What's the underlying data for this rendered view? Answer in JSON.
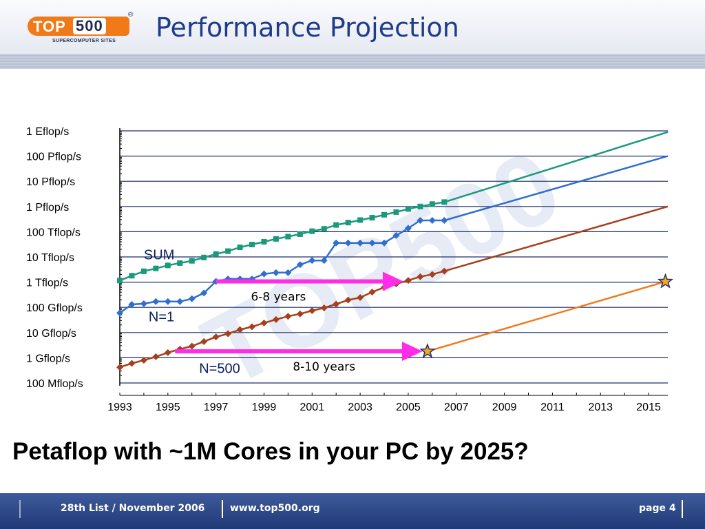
{
  "header": {
    "logo_text_top": "TOP",
    "logo_text_500": "500",
    "logo_registered": "®",
    "logo_subtitle": "SUPERCOMPUTER SITES",
    "title": "Performance Projection"
  },
  "question": "Petaflop with ~1M Cores in your PC by 2025?",
  "footer": {
    "list": "28th List / November 2006",
    "url": "www.top500.org",
    "page": "page 4"
  },
  "colors": {
    "sum": "#1a9a7d",
    "n1": "#2f6fcf",
    "n500": "#a5401d",
    "projection_orange": "#f27a1c",
    "arrow_magenta": "#ff2ee6",
    "title_blue": "#1f3b8c",
    "footer_blue": "#2d4785"
  },
  "chart_data": {
    "type": "line",
    "y_scale": "log",
    "y_unit": "Gflop/s",
    "ylim": [
      0.1,
      1000000000
    ],
    "xlim": [
      1993,
      2015.8
    ],
    "y_ticks": [
      {
        "value": 0.1,
        "label": "100 Mflop/s"
      },
      {
        "value": 1,
        "label": "1 Gflop/s"
      },
      {
        "value": 10,
        "label": "10 Gflop/s"
      },
      {
        "value": 100,
        "label": "100 Gflop/s"
      },
      {
        "value": 1000,
        "label": "1 Tflop/s"
      },
      {
        "value": 10000,
        "label": "10 Tflop/s"
      },
      {
        "value": 100000,
        "label": "100 Tflop/s"
      },
      {
        "value": 1000000,
        "label": "1 Pflop/s"
      },
      {
        "value": 10000000,
        "label": "10 Pflop/s"
      },
      {
        "value": 100000000,
        "label": "100 Pflop/s"
      },
      {
        "value": 1000000000,
        "label": "1 Eflop/s"
      }
    ],
    "x_ticks": [
      1993,
      1995,
      1997,
      1999,
      2001,
      2003,
      2005,
      2007,
      2009,
      2011,
      2013,
      2015
    ],
    "grid": true,
    "series": [
      {
        "name": "SUM",
        "x": [
          1993.0,
          1993.5,
          1994.0,
          1994.5,
          1995.0,
          1995.5,
          1996.0,
          1996.5,
          1997.0,
          1997.5,
          1998.0,
          1998.5,
          1999.0,
          1999.5,
          2000.0,
          2000.5,
          2001.0,
          2001.5,
          2002.0,
          2002.5,
          2003.0,
          2003.5,
          2004.0,
          2004.5,
          2005.0,
          2005.5,
          2006.0,
          2006.5
        ],
        "values": [
          1160,
          1800,
          2700,
          3500,
          4600,
          5700,
          7000,
          9500,
          13000,
          17000,
          24000,
          31000,
          40000,
          52000,
          64000,
          80000,
          105000,
          130000,
          185000,
          230000,
          290000,
          360000,
          470000,
          600000,
          800000,
          1000000,
          1250000,
          1500000
        ]
      },
      {
        "name": "N=1",
        "x": [
          1993.0,
          1993.5,
          1994.0,
          1994.5,
          1995.0,
          1995.5,
          1996.0,
          1996.5,
          1997.0,
          1997.5,
          1998.0,
          1998.5,
          1999.0,
          1999.5,
          2000.0,
          2000.5,
          2001.0,
          2001.5,
          2002.0,
          2002.5,
          2003.0,
          2003.5,
          2004.0,
          2004.5,
          2005.0,
          2005.5,
          2006.0,
          2006.5
        ],
        "values": [
          60,
          130,
          140,
          170,
          170,
          170,
          220,
          370,
          1070,
          1340,
          1340,
          1340,
          2120,
          2380,
          2380,
          4940,
          7230,
          7230,
          35860,
          35860,
          35860,
          35860,
          35860,
          70720,
          136800,
          280600,
          280600,
          280600
        ]
      },
      {
        "name": "N=500",
        "x": [
          1993.0,
          1993.5,
          1994.0,
          1994.5,
          1995.0,
          1995.5,
          1996.0,
          1996.5,
          1997.0,
          1997.5,
          1998.0,
          1998.5,
          1999.0,
          1999.5,
          2000.0,
          2000.5,
          2001.0,
          2001.5,
          2002.0,
          2002.5,
          2003.0,
          2003.5,
          2004.0,
          2004.5,
          2005.0,
          2005.5,
          2006.0,
          2006.5
        ],
        "values": [
          0.42,
          0.6,
          0.8,
          1.1,
          1.6,
          2.2,
          2.9,
          4.4,
          6.7,
          9.0,
          13,
          17,
          24,
          33,
          44,
          55,
          74,
          95,
          134,
          195,
          245,
          404,
          620,
          850,
          1170,
          1640,
          2030,
          2740
        ]
      },
      {
        "name": "SUM projection",
        "x": [
          2006.5,
          2015.8
        ],
        "values": [
          1500000,
          900000000
        ]
      },
      {
        "name": "N=1 projection",
        "x": [
          2006.5,
          2015.8
        ],
        "values": [
          280600,
          100000000
        ]
      },
      {
        "name": "N=500 projection",
        "x": [
          2006.5,
          2015.8
        ],
        "values": [
          2740,
          1000000
        ]
      },
      {
        "name": "PC projection",
        "x": [
          2005.8,
          2015.7
        ],
        "values": [
          1.8,
          1050
        ]
      }
    ],
    "markers": [
      {
        "x": 2005.8,
        "y": 1.8,
        "symbol": "star"
      },
      {
        "x": 2015.7,
        "y": 1050,
        "symbol": "star"
      }
    ],
    "arrows": [
      {
        "label": "6-8 years",
        "x_start": 1997.0,
        "x_end": 2004.8,
        "y": 1070
      },
      {
        "label": "8-10 years",
        "x_start": 1995.3,
        "x_end": 2005.6,
        "y": 1.8
      }
    ],
    "annotations": [
      {
        "text": "SUM",
        "x": 1994.0,
        "y": 8000
      },
      {
        "text": "N=1",
        "x": 1994.2,
        "y": 28
      },
      {
        "text": "N=500",
        "x": 1996.3,
        "y": 0.25
      }
    ],
    "background_watermark": "TOP500"
  }
}
